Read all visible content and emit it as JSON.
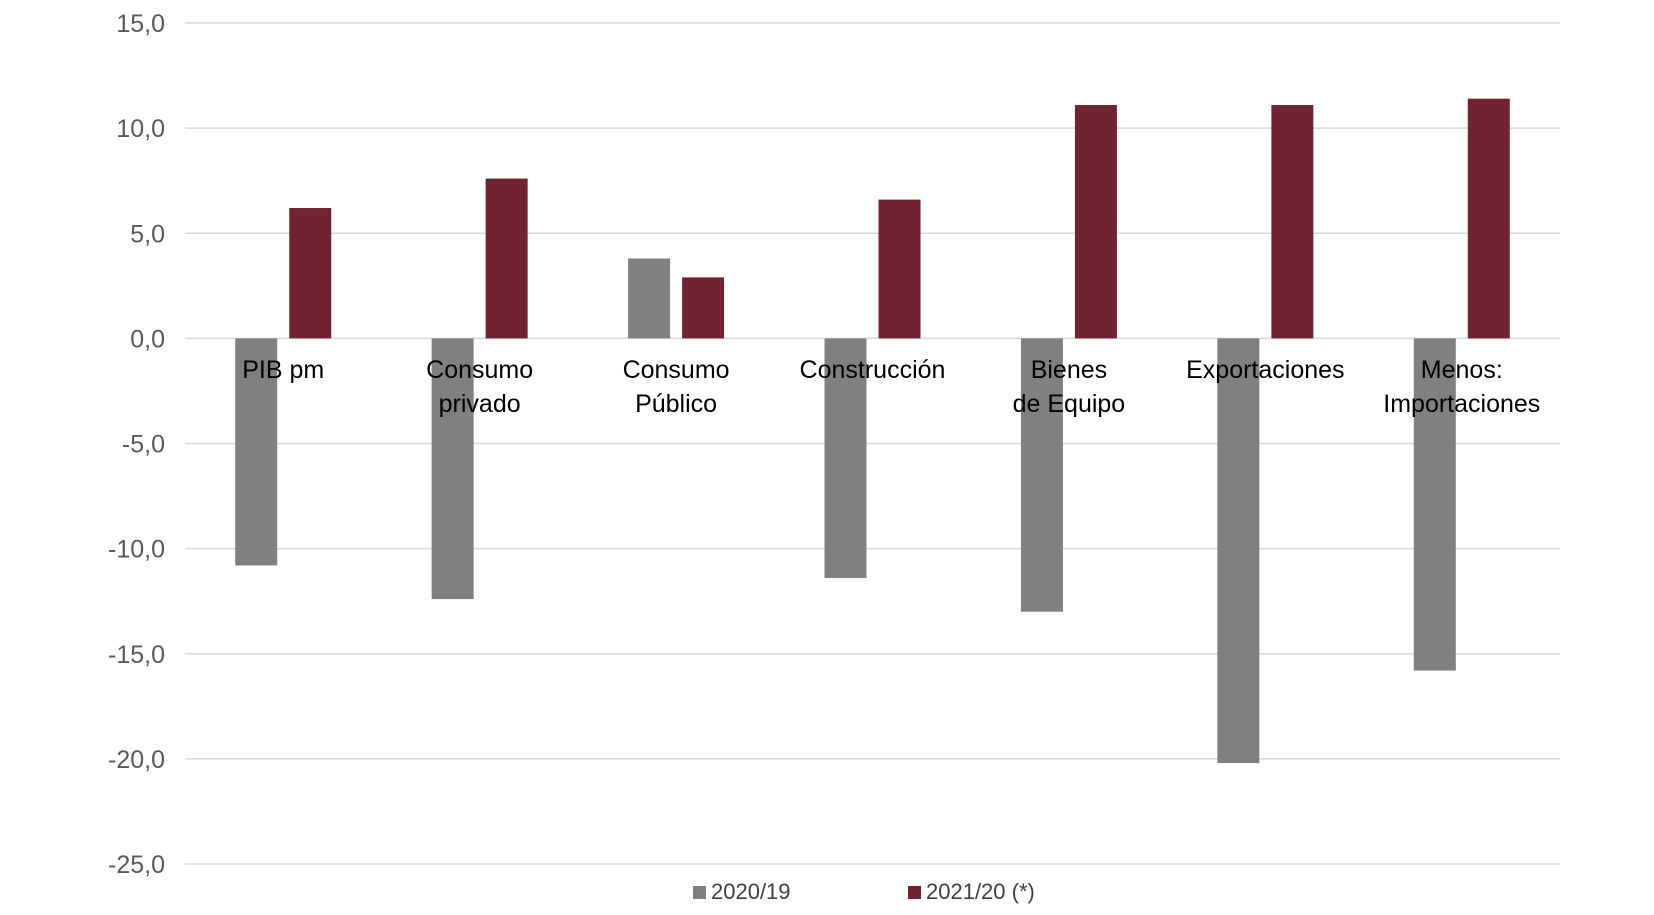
{
  "chart_data": {
    "type": "bar",
    "title": "",
    "xlabel": "",
    "ylabel": "",
    "ylim": [
      -25,
      15
    ],
    "yticks": [
      15,
      10,
      5,
      0,
      -5,
      -10,
      -15,
      -20,
      -25
    ],
    "ytick_labels": [
      "15,0",
      "10,0",
      "5,0",
      "0,0",
      "-5,0",
      "-10,0",
      "-15,0",
      "-20,0",
      "-25,0"
    ],
    "grid": true,
    "legend_position": "bottom",
    "categories": [
      [
        "PIB pm"
      ],
      [
        "Consumo",
        "privado"
      ],
      [
        "Consumo",
        "Público"
      ],
      [
        "Construcción"
      ],
      [
        "Bienes",
        "de Equipo"
      ],
      [
        "Exportaciones"
      ],
      [
        "Menos:",
        "Importaciones"
      ]
    ],
    "series": [
      {
        "name": "2020/19",
        "color": "#808080",
        "values": [
          -10.8,
          -12.4,
          3.8,
          -11.4,
          -13.0,
          -20.2,
          -15.8
        ]
      },
      {
        "name": "2021/20 (*)",
        "color": "#722331",
        "values": [
          6.2,
          7.6,
          2.9,
          6.6,
          11.1,
          11.1,
          11.4
        ]
      }
    ]
  }
}
